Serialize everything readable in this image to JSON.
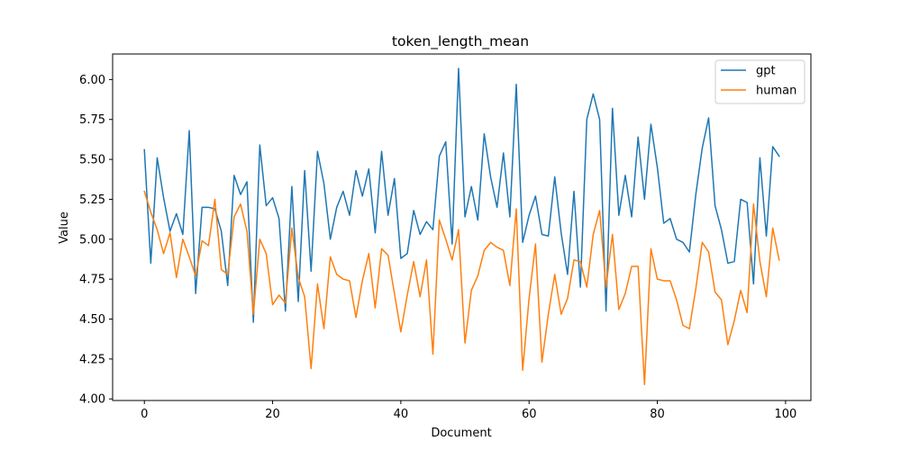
{
  "chart_data": {
    "type": "line",
    "title": "token_length_mean",
    "xlabel": "Document",
    "ylabel": "Value",
    "xlim": [
      -4.95,
      103.95
    ],
    "ylim": [
      3.99,
      6.16
    ],
    "xticks": [
      0,
      20,
      40,
      60,
      80,
      100
    ],
    "yticks": [
      4.0,
      4.25,
      4.5,
      4.75,
      5.0,
      5.25,
      5.5,
      5.75,
      6.0
    ],
    "ytick_labels": [
      "4.00",
      "4.25",
      "4.50",
      "4.75",
      "5.00",
      "5.25",
      "5.50",
      "5.75",
      "6.00"
    ],
    "grid": false,
    "legend_position": "top-right",
    "series": [
      {
        "name": "gpt",
        "color": "#1f77b4",
        "values": [
          5.56,
          4.85,
          5.51,
          5.26,
          5.05,
          5.16,
          5.03,
          5.68,
          4.66,
          5.2,
          5.2,
          5.19,
          5.05,
          4.71,
          5.4,
          5.28,
          5.36,
          4.48,
          5.59,
          5.21,
          5.26,
          5.13,
          4.55,
          5.33,
          4.61,
          5.43,
          4.8,
          5.55,
          5.35,
          5.0,
          5.2,
          5.3,
          5.15,
          5.43,
          5.27,
          5.44,
          5.04,
          5.55,
          5.15,
          5.38,
          4.88,
          4.91,
          5.18,
          5.03,
          5.11,
          5.06,
          5.52,
          5.61,
          4.97,
          6.07,
          5.14,
          5.33,
          5.12,
          5.66,
          5.39,
          5.2,
          5.54,
          5.14,
          5.97,
          4.98,
          5.15,
          5.27,
          5.03,
          5.02,
          5.39,
          5.04,
          4.78,
          5.3,
          4.7,
          5.75,
          5.91,
          5.75,
          4.55,
          5.82,
          5.15,
          5.4,
          5.14,
          5.64,
          5.25,
          5.72,
          5.45,
          5.1,
          5.13,
          5.0,
          4.98,
          4.92,
          5.28,
          5.57,
          5.76,
          5.21,
          5.06,
          4.85,
          4.86,
          5.25,
          5.23,
          4.72,
          5.51,
          5.02,
          5.58,
          5.52
        ]
      },
      {
        "name": "human",
        "color": "#ff7f0e",
        "values": [
          5.3,
          5.17,
          5.06,
          4.91,
          5.04,
          4.76,
          5.0,
          4.89,
          4.77,
          4.99,
          4.96,
          5.25,
          4.81,
          4.78,
          5.14,
          5.22,
          5.05,
          4.53,
          5.0,
          4.91,
          4.59,
          4.65,
          4.6,
          5.07,
          4.76,
          4.64,
          4.19,
          4.72,
          4.44,
          4.89,
          4.78,
          4.75,
          4.74,
          4.51,
          4.74,
          4.91,
          4.57,
          4.94,
          4.9,
          4.66,
          4.42,
          4.65,
          4.86,
          4.64,
          4.87,
          4.28,
          5.12,
          5.0,
          4.87,
          5.06,
          4.35,
          4.68,
          4.77,
          4.93,
          4.98,
          4.95,
          4.93,
          4.71,
          5.19,
          4.18,
          4.63,
          4.97,
          4.23,
          4.53,
          4.78,
          4.53,
          4.63,
          4.87,
          4.86,
          4.7,
          5.03,
          5.18,
          4.7,
          5.03,
          4.56,
          4.66,
          4.83,
          4.83,
          4.09,
          4.94,
          4.75,
          4.74,
          4.74,
          4.62,
          4.46,
          4.44,
          4.69,
          4.98,
          4.92,
          4.67,
          4.62,
          4.34,
          4.49,
          4.68,
          4.54,
          5.22,
          4.86,
          4.64,
          5.07,
          4.87
        ]
      }
    ]
  }
}
